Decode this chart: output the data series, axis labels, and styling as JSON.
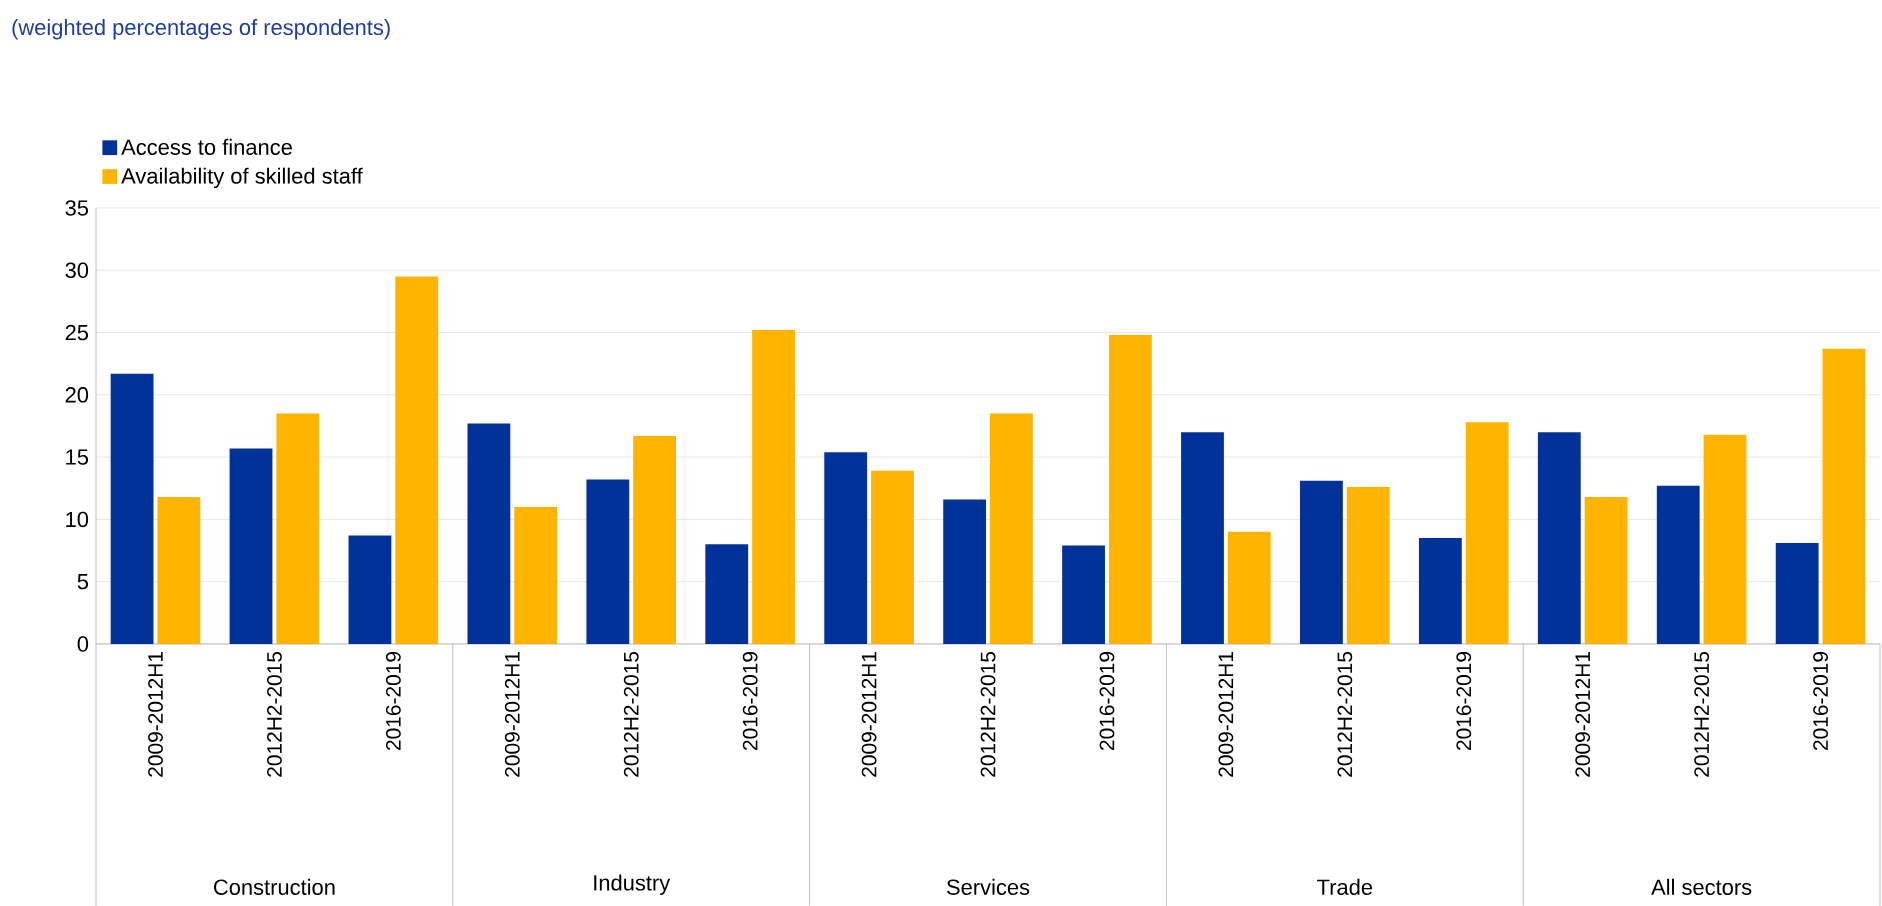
{
  "chart_data": {
    "type": "bar",
    "subtitle": "(weighted percentages of respondents)",
    "categories": [
      "2009-2012H1",
      "2012H2-2015",
      "2016-2019",
      "2009-2012H1",
      "2012H2-2015",
      "2016-2019",
      "2009-2012H1",
      "2012H2-2015",
      "2016-2019",
      "2009-2012H1",
      "2012H2-2015",
      "2016-2019",
      "2009-2012H1",
      "2012H2-2015",
      "2016-2019"
    ],
    "series": [
      {
        "name": "Access to finance",
        "color": "#003299",
        "values": [
          21.7,
          15.7,
          8.7,
          17.7,
          13.2,
          8.0,
          15.4,
          11.6,
          7.9,
          17.0,
          13.1,
          8.5,
          17.0,
          12.7,
          8.1
        ]
      },
      {
        "name": "Availability of skilled staff",
        "color": "#ffb400",
        "values": [
          11.8,
          18.5,
          29.5,
          11.0,
          16.7,
          25.2,
          13.9,
          18.5,
          24.8,
          9.0,
          12.6,
          17.8,
          11.8,
          16.8,
          23.7
        ]
      }
    ],
    "annotations": [
      "Construction",
      "Industry",
      "Services",
      "Trade",
      "All sectors"
    ],
    "ylim": [
      0,
      35
    ],
    "yticks": [
      0,
      5,
      10,
      15,
      20,
      25,
      30,
      35
    ],
    "grid": "y",
    "legend": "top left"
  }
}
